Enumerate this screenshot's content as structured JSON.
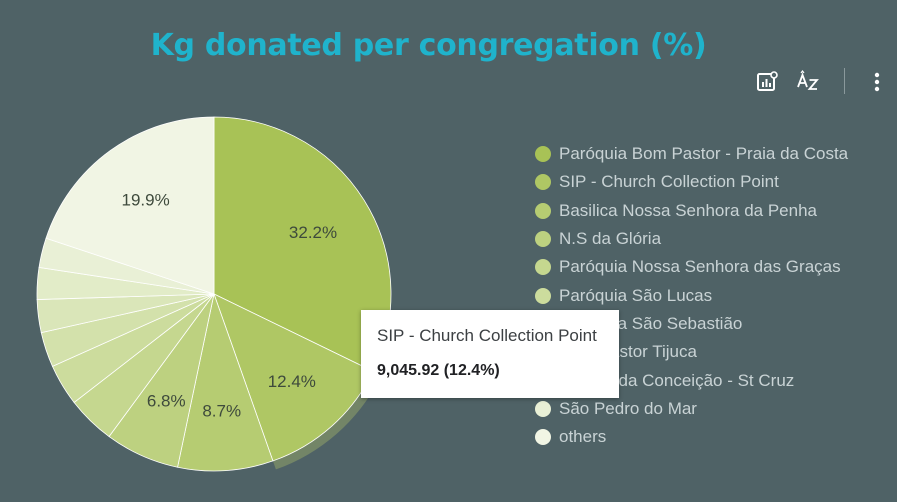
{
  "chart_data": {
    "type": "pie",
    "title": "Kg donated per congregation (%)",
    "slices": [
      {
        "label": "Paróquia Bom Pastor - Praia da Costa",
        "percent": 32.2,
        "color": "#a8c256",
        "data_label": "32.2%"
      },
      {
        "label": "SIP - Church Collection Point",
        "percent": 12.4,
        "color": "#afc764",
        "data_label": "12.4%"
      },
      {
        "label": "Basilica Nossa Senhora da Penha",
        "percent": 8.7,
        "color": "#b6cc72",
        "data_label": "8.7%"
      },
      {
        "label": "N.S da Glória",
        "percent": 6.8,
        "color": "#bdd180",
        "data_label": "6.8%"
      },
      {
        "label": "Paróquia Nossa Senhora das Graças",
        "percent": 4.4,
        "color": "#c5d78f",
        "data_label": ""
      },
      {
        "label": "Paróquia São Lucas",
        "percent": 3.8,
        "color": "#ccdc9d",
        "data_label": ""
      },
      {
        "label": "Paróquia São Sebastião",
        "percent": 3.2,
        "color": "#d3e1ab",
        "data_label": ""
      },
      {
        "label": "Bom Pastor Tijuca",
        "percent": 3.0,
        "color": "#dae6b9",
        "data_label": ""
      },
      {
        "label": "Imaculada Conceição - St Cruz",
        "percent": 2.9,
        "color": "#e2ecc8",
        "data_label": ""
      },
      {
        "label": "São Pedro do Mar",
        "percent": 2.7,
        "color": "#e9f0d6",
        "data_label": ""
      },
      {
        "label": "others",
        "percent": 19.9,
        "color": "#f1f5e4",
        "data_label": "19.9%"
      }
    ],
    "legend_position": "right",
    "highlighted": "SIP - Church Collection Point"
  },
  "tooltip": {
    "name": "SIP - Church Collection Point",
    "value": "9,045.92 (12.4%)"
  },
  "toolbar": {
    "icons": [
      "chart-insight-icon",
      "sort-az-icon",
      "more-vert-icon"
    ]
  }
}
